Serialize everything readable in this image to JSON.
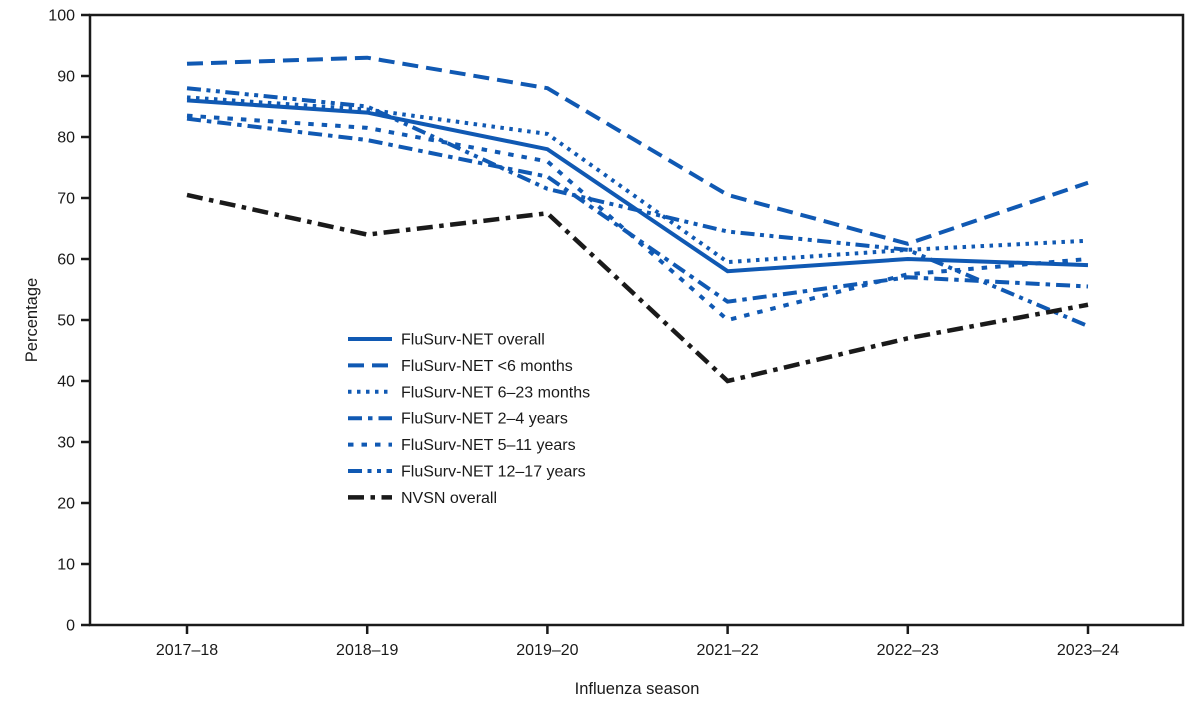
{
  "figure": {
    "background": "#ffffff",
    "accent_blue": "#1059b3",
    "axis_black": "#1a1a1a"
  },
  "axes": {
    "xlabel": "Influenza season",
    "ylabel": "Percentage",
    "y_tick_labels": [
      "0",
      "10",
      "20",
      "30",
      "40",
      "50",
      "60",
      "70",
      "80",
      "90",
      "100"
    ],
    "x_tick_labels": [
      "2017–18",
      "2018–19",
      "2019–20",
      "2021–22",
      "2022–23",
      "2023–24"
    ]
  },
  "legend": {
    "items": [
      "FluSurv-NET overall",
      "FluSurv-NET <6 months",
      "FluSurv-NET 6–23 months",
      "FluSurv-NET 2–4 years",
      "FluSurv-NET 5–11 years",
      "FluSurv-NET 12–17 years",
      "NVSN overall"
    ]
  },
  "chart_data": {
    "type": "line",
    "categories": [
      "2017–18",
      "2018–19",
      "2019–20",
      "2021–22",
      "2022–23",
      "2023–24"
    ],
    "xlabel": "Influenza season",
    "ylabel": "Percentage",
    "ylim": [
      0,
      100
    ],
    "ytick_step": 10,
    "grid": false,
    "legend_position": "inside-left-middle",
    "series": [
      {
        "name": "FluSurv-NET overall",
        "color": "#1059b3",
        "style": "solid",
        "values": [
          86,
          84,
          78,
          58,
          60,
          59
        ]
      },
      {
        "name": "FluSurv-NET <6 months",
        "color": "#1059b3",
        "style": "long-dash",
        "values": [
          92,
          93,
          88,
          70.5,
          62.5,
          72.5
        ]
      },
      {
        "name": "FluSurv-NET 6–23 months",
        "color": "#1059b3",
        "style": "dotted",
        "values": [
          86.5,
          84.5,
          80.5,
          59.5,
          61.5,
          63
        ]
      },
      {
        "name": "FluSurv-NET 2–4 years",
        "color": "#1059b3",
        "style": "dash-dot",
        "values": [
          83,
          79.5,
          73.5,
          53,
          57,
          55.5
        ]
      },
      {
        "name": "FluSurv-NET 5–11 years",
        "color": "#1059b3",
        "style": "medium-dash",
        "values": [
          83.5,
          81.5,
          76,
          50,
          57.5,
          60
        ]
      },
      {
        "name": "FluSurv-NET 12–17 years",
        "color": "#1059b3",
        "style": "dash-dot-dot",
        "values": [
          88,
          85,
          71.5,
          64.5,
          61.5,
          49
        ]
      },
      {
        "name": "NVSN overall",
        "color": "#1a1a1a",
        "style": "dash-dot-long",
        "values": [
          70.5,
          64,
          67.5,
          40,
          47,
          52.5
        ]
      }
    ]
  }
}
